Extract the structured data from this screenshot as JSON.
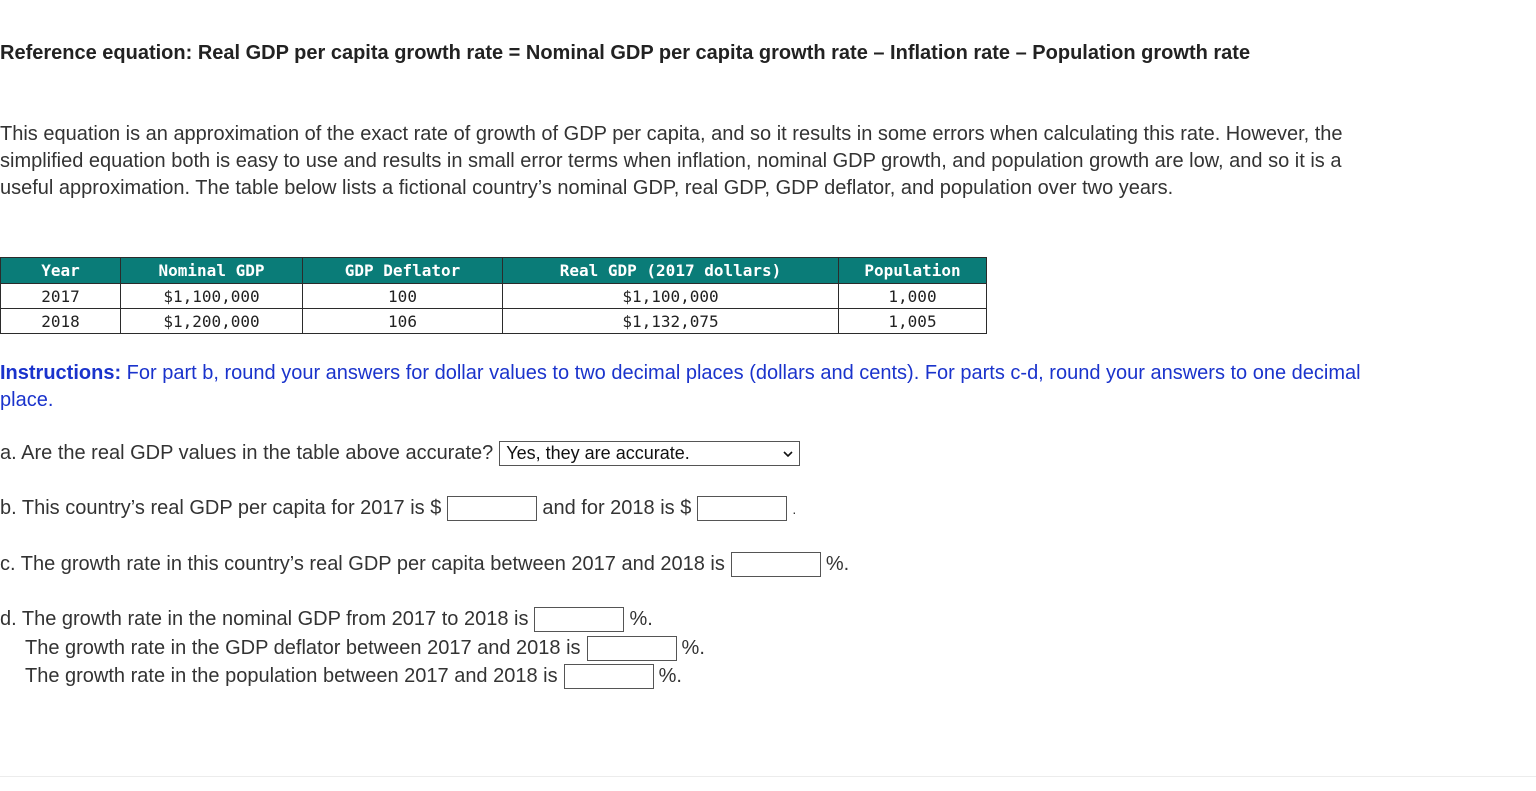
{
  "reference_equation": "Reference equation: Real GDP per capita growth rate = Nominal GDP per capita growth rate – Inflation rate – Population growth rate",
  "paragraph": "This equation is an approximation of the exact rate of growth of GDP per capita, and so it results in some errors when calculating this rate. However, the simplified equation both is easy to use and results in small error terms when inflation, nominal GDP growth, and population growth are low, and so it is a useful approximation. The table below lists a fictional country’s nominal GDP, real GDP, GDP deflator, and population over two years.",
  "table": {
    "headers": [
      "Year",
      "Nominal GDP",
      "GDP Deflator",
      "Real GDP (2017 dollars)",
      "Population"
    ],
    "rows": [
      [
        "2017",
        "$1,100,000",
        "100",
        "$1,100,000",
        "1,000"
      ],
      [
        "2018",
        "$1,200,000",
        "106",
        "$1,132,075",
        "1,005"
      ]
    ],
    "header_color": "#0a7c78"
  },
  "instructions": {
    "label": "Instructions:",
    "text": " For part b, round your answers for dollar values to two decimal places (dollars and cents). For parts c-d, round your answers to one decimal place.",
    "color": "#1a33cc"
  },
  "questions": {
    "a": {
      "text": "a. Are the real GDP values in the table above accurate?",
      "selected": "Yes, they are accurate.",
      "icon": "chevron-down-icon"
    },
    "b": {
      "text1": "b. This country’s real GDP per capita for 2017 is $",
      "text2": "and for 2018 is $",
      "text3": ".",
      "value_2017": "",
      "value_2018": ""
    },
    "c": {
      "text": "c. The growth rate in this country’s real GDP per capita between 2017 and 2018 is",
      "unit": "%.",
      "value": ""
    },
    "d": {
      "line1": "d. The growth rate in the nominal GDP from 2017 to 2018 is",
      "line2": "The growth rate in the GDP deflator between 2017 and 2018 is",
      "line3": "The growth rate in the population between 2017 and 2018 is",
      "unit": "%.",
      "value1": "",
      "value2": "",
      "value3": ""
    }
  }
}
